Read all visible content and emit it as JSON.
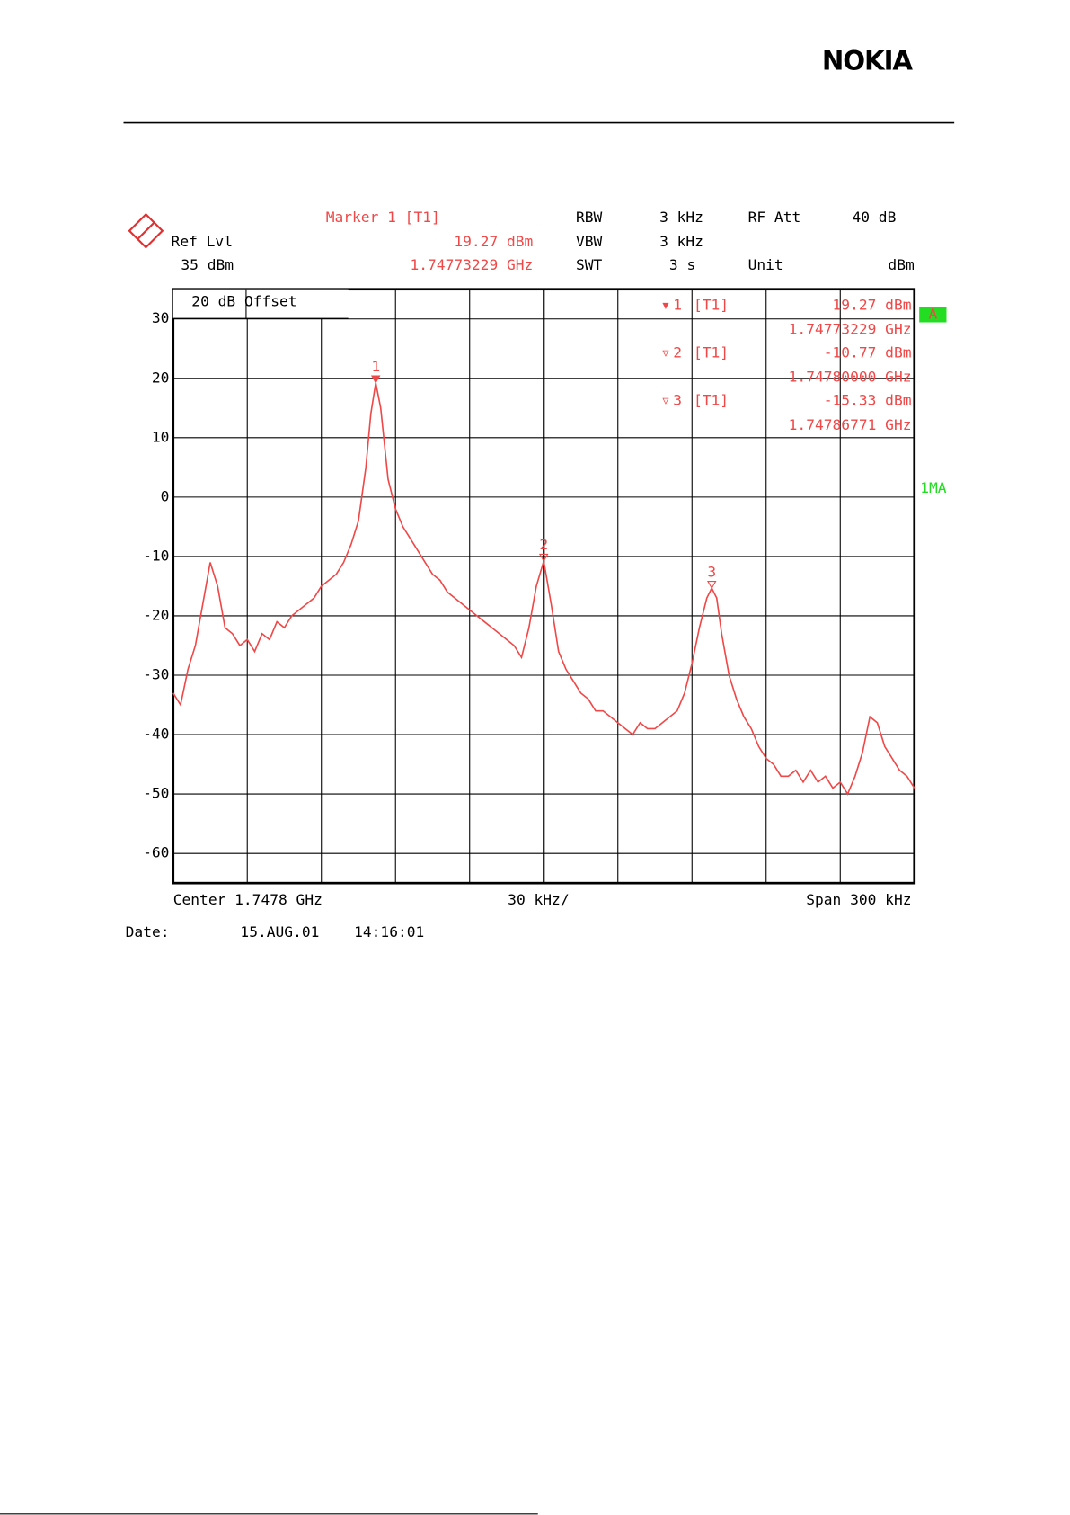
{
  "brand": "NOKIA",
  "header": {
    "marker_title": "Marker 1 [T1]",
    "ref_lvl_label": "Ref Lvl",
    "ref_lvl": "35 dBm",
    "marker_level": "19.27 dBm",
    "marker_freq": "1.74773229 GHz",
    "rbw_label": "RBW",
    "rbw": "3 kHz",
    "vbw_label": "VBW",
    "vbw": "3 kHz",
    "swt_label": "SWT",
    "swt": "3 s",
    "rfatt_label": "RF Att",
    "rfatt": "40 dB",
    "unit_label": "Unit",
    "unit": "dBm"
  },
  "offset_label": "20 dB Offset",
  "trace_label": "A",
  "detector_label": "1MA",
  "footer": {
    "center": "Center 1.7478 GHz",
    "div": "30 kHz/",
    "span": "Span 300 kHz",
    "date_label": "Date:",
    "date": "15.AUG.01",
    "time": "14:16:01"
  },
  "chart_data": {
    "type": "line",
    "xlim": [
      -150,
      150
    ],
    "ylim": [
      -65,
      35
    ],
    "yticks": [
      30,
      20,
      10,
      0,
      -10,
      -20,
      -30,
      -40,
      -50,
      -60
    ],
    "grid": true,
    "x": [
      -150,
      -147,
      -144,
      -141,
      -138,
      -135,
      -132,
      -129,
      -126,
      -123,
      -120,
      -117,
      -114,
      -111,
      -108,
      -105,
      -102,
      -99,
      -96,
      -93,
      -90,
      -87,
      -84,
      -81,
      -78,
      -75,
      -72,
      -70,
      -68,
      -66,
      -63,
      -60,
      -57,
      -54,
      -51,
      -48,
      -45,
      -42,
      -39,
      -36,
      -33,
      -30,
      -27,
      -24,
      -21,
      -18,
      -15,
      -12,
      -9,
      -6,
      -3,
      0,
      3,
      6,
      9,
      12,
      15,
      18,
      21,
      24,
      27,
      30,
      33,
      36,
      39,
      42,
      45,
      48,
      51,
      54,
      57,
      60,
      63,
      66,
      68,
      70,
      72,
      75,
      78,
      81,
      84,
      87,
      90,
      93,
      96,
      99,
      102,
      105,
      108,
      111,
      114,
      117,
      120,
      123,
      126,
      129,
      132,
      135,
      138,
      141,
      144,
      147,
      150
    ],
    "series": [
      {
        "color": "#f04848",
        "values": [
          -33,
          -35,
          -29,
          -25,
          -18,
          -11,
          -15,
          -22,
          -23,
          -25,
          -24,
          -26,
          -23,
          -24,
          -21,
          -22,
          -20,
          -19,
          -18,
          -17,
          -15,
          -14,
          -13,
          -11,
          -8,
          -4,
          5,
          14,
          19.27,
          15,
          3,
          -2,
          -5,
          -7,
          -9,
          -11,
          -13,
          -14,
          -16,
          -17,
          -18,
          -19,
          -20,
          -21,
          -22,
          -23,
          -24,
          -25,
          -27,
          -22,
          -15,
          -10.77,
          -18,
          -26,
          -29,
          -31,
          -33,
          -34,
          -36,
          -36,
          -37,
          -38,
          -39,
          -40,
          -38,
          -39,
          -39,
          -38,
          -37,
          -36,
          -33,
          -28,
          -22,
          -17,
          -15.33,
          -17,
          -23,
          -30,
          -34,
          -37,
          -39,
          -42,
          -44,
          -45,
          -47,
          -47,
          -46,
          -48,
          -46,
          -48,
          -47,
          -49,
          -48,
          -50,
          -47,
          -43,
          -37,
          -38,
          -42,
          -44,
          -46,
          -47,
          -49
        ]
      }
    ],
    "markers": [
      {
        "label": "1",
        "symbol": "▼",
        "trace": "[T1]",
        "x": -68,
        "value": 19.27,
        "value_label": "19.27 dBm",
        "frequency": "1.74773229 GHz"
      },
      {
        "label": "2",
        "symbol": "▽",
        "trace": "[T1]",
        "x": 0,
        "value": -10.77,
        "value_label": "-10.77 dBm",
        "frequency": "1.74780000 GHz"
      },
      {
        "label": "3",
        "symbol": "▽",
        "trace": "[T1]",
        "x": 68,
        "value": -15.33,
        "value_label": "-15.33 dBm",
        "frequency": "1.74786771 GHz"
      }
    ]
  }
}
